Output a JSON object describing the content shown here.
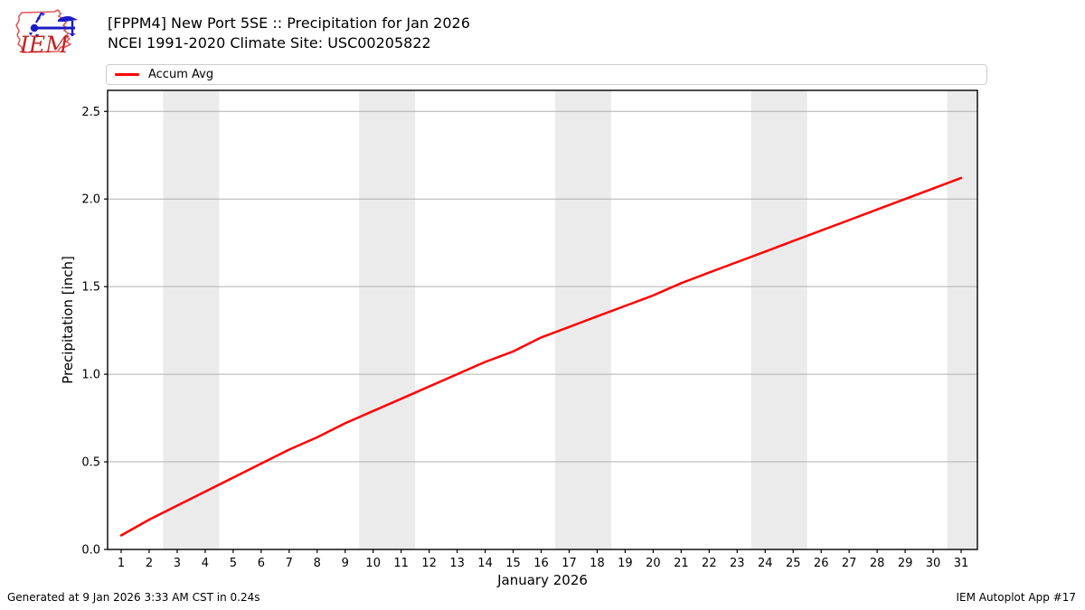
{
  "logo": {
    "text": "IEM"
  },
  "footer": {
    "generated": "Generated at 9 Jan 2026 3:33 AM CST in 0.24s",
    "app": "IEM Autoplot App #17"
  },
  "chart_data": {
    "type": "line",
    "title": "[FPPM4] New Port 5SE :: Precipitation for Jan 2026",
    "subtitle": "NCEI 1991-2020 Climate Site: USC00205822",
    "xlabel": "January 2026",
    "ylabel": "Precipitation [inch]",
    "xlim": [
      0.516,
      31.58
    ],
    "ylim": [
      0,
      2.62
    ],
    "yticks": [
      0.0,
      0.5,
      1.0,
      1.5,
      2.0,
      2.5
    ],
    "xticks": [
      1,
      2,
      3,
      4,
      5,
      6,
      7,
      8,
      9,
      10,
      11,
      12,
      13,
      14,
      15,
      16,
      17,
      18,
      19,
      20,
      21,
      22,
      23,
      24,
      25,
      26,
      27,
      28,
      29,
      30,
      31
    ],
    "grid": "horizontal",
    "legend_position": "top",
    "band_color": "#ebebeb",
    "grid_color": "#b0b0b0",
    "weekend_bands": [
      [
        2.5,
        4.5
      ],
      [
        9.5,
        11.5
      ],
      [
        16.5,
        18.5
      ],
      [
        23.5,
        25.5
      ],
      [
        30.5,
        31.58
      ]
    ],
    "series": [
      {
        "name": "Accum Avg",
        "color": "#ff0000",
        "x": [
          1,
          2,
          3,
          4,
          5,
          6,
          7,
          8,
          9,
          10,
          11,
          12,
          13,
          14,
          15,
          16,
          17,
          18,
          19,
          20,
          21,
          22,
          23,
          24,
          25,
          26,
          27,
          28,
          29,
          30,
          31
        ],
        "values": [
          0.08,
          0.17,
          0.25,
          0.33,
          0.41,
          0.49,
          0.57,
          0.64,
          0.72,
          0.79,
          0.86,
          0.93,
          1.0,
          1.07,
          1.13,
          1.21,
          1.27,
          1.33,
          1.39,
          1.45,
          1.52,
          1.58,
          1.64,
          1.7,
          1.76,
          1.82,
          1.88,
          1.94,
          2.0,
          2.06,
          2.12
        ]
      }
    ]
  }
}
